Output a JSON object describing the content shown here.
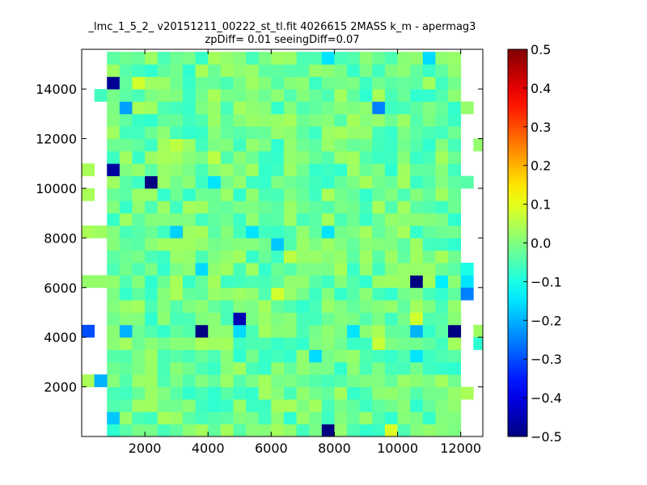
{
  "chart_data": {
    "type": "heatmap",
    "title_line1": "_lmc_1_5_2_ v20151211_00222_st_tl.fit 4026615 2MASS k_m - apermag3",
    "title_line2": "zpDiff= 0.01 seeingDiff=0.07",
    "xlim": [
      0,
      12700
    ],
    "ylim": [
      0,
      15600
    ],
    "x_ticks": [
      2000,
      4000,
      6000,
      8000,
      10000,
      12000
    ],
    "x_tick_labels": [
      "2000",
      "4000",
      "6000",
      "8000",
      "10000",
      "12000"
    ],
    "y_ticks": [
      2000,
      4000,
      6000,
      8000,
      10000,
      12000,
      14000
    ],
    "y_tick_labels": [
      "2000",
      "4000",
      "6000",
      "8000",
      "10000",
      "12000",
      "14000"
    ],
    "colorbar": {
      "colormap": "jet",
      "vmin": -0.5,
      "vmax": 0.5,
      "ticks": [
        -0.5,
        -0.4,
        -0.3,
        -0.2,
        -0.1,
        0.0,
        0.1,
        0.2,
        0.3,
        0.4,
        0.5
      ],
      "tick_labels": [
        "−0.5",
        "−0.4",
        "−0.3",
        "−0.2",
        "−0.1",
        "0.0",
        "0.1",
        "0.2",
        "0.3",
        "0.4",
        "0.5"
      ]
    },
    "grid": {
      "x_start": 0,
      "y_start": 0,
      "cell_width": 400,
      "cell_height": 500,
      "columns": 32,
      "rows": 31,
      "main_columns": [
        2,
        29
      ],
      "background_value": -0.02
    },
    "cells": [
      {
        "col": 2,
        "row": 28,
        "value": -0.48
      },
      {
        "col": 2,
        "row": 21,
        "value": -0.47
      },
      {
        "col": 2,
        "row": 1,
        "value": -0.18
      },
      {
        "col": 3,
        "row": 26,
        "value": -0.22
      },
      {
        "col": 3,
        "row": 8,
        "value": -0.2
      },
      {
        "col": 5,
        "row": 20,
        "value": -0.5
      },
      {
        "col": 7,
        "row": 16,
        "value": -0.17
      },
      {
        "col": 9,
        "row": 13,
        "value": -0.16
      },
      {
        "col": 9,
        "row": 8,
        "value": -0.5
      },
      {
        "col": 10,
        "row": 20,
        "value": -0.15
      },
      {
        "col": 12,
        "row": 9,
        "value": -0.45
      },
      {
        "col": 12,
        "row": 8,
        "value": -0.16
      },
      {
        "col": 13,
        "row": 16,
        "value": -0.15
      },
      {
        "col": 15,
        "row": 15,
        "value": -0.18
      },
      {
        "col": 18,
        "row": 6,
        "value": -0.16
      },
      {
        "col": 19,
        "row": 0,
        "value": -0.5
      },
      {
        "col": 19,
        "row": 16,
        "value": -0.15
      },
      {
        "col": 19,
        "row": 30,
        "value": -0.15
      },
      {
        "col": 21,
        "row": 8,
        "value": -0.15
      },
      {
        "col": 23,
        "row": 26,
        "value": -0.25
      },
      {
        "col": 26,
        "row": 12,
        "value": -0.5
      },
      {
        "col": 26,
        "row": 8,
        "value": -0.2
      },
      {
        "col": 26,
        "row": 6,
        "value": -0.15
      },
      {
        "col": 27,
        "row": 30,
        "value": -0.16
      },
      {
        "col": 28,
        "row": 12,
        "value": -0.14
      },
      {
        "col": 29,
        "row": 8,
        "value": -0.5
      },
      {
        "col": 30,
        "row": 12,
        "value": -0.15
      },
      {
        "col": 30,
        "row": 11,
        "value": -0.25
      },
      {
        "col": 4,
        "row": 28,
        "value": 0.08
      },
      {
        "col": 7,
        "row": 23,
        "value": 0.06
      },
      {
        "col": 15,
        "row": 11,
        "value": 0.08
      },
      {
        "col": 23,
        "row": 7,
        "value": 0.07
      },
      {
        "col": 26,
        "row": 9,
        "value": 0.08
      },
      {
        "col": 24,
        "row": 0,
        "value": 0.09
      },
      {
        "col": 16,
        "row": 14,
        "value": 0.06
      },
      {
        "col": 10,
        "row": 22,
        "value": 0.06
      },
      {
        "col": 0,
        "row": 21,
        "value": 0.04
      },
      {
        "col": 0,
        "row": 19,
        "value": 0.04
      },
      {
        "col": 0,
        "row": 16,
        "value": 0.04
      },
      {
        "col": 0,
        "row": 12,
        "value": 0.02
      },
      {
        "col": 0,
        "row": 8,
        "value": -0.3
      },
      {
        "col": 0,
        "row": 4,
        "value": 0.04
      },
      {
        "col": 1,
        "row": 27,
        "value": -0.06
      },
      {
        "col": 1,
        "row": 16,
        "value": 0.03
      },
      {
        "col": 1,
        "row": 12,
        "value": 0.02
      },
      {
        "col": 1,
        "row": 4,
        "value": -0.2
      },
      {
        "col": 30,
        "row": 26,
        "value": 0.02
      },
      {
        "col": 30,
        "row": 20,
        "value": -0.04
      },
      {
        "col": 30,
        "row": 3,
        "value": 0.04
      },
      {
        "col": 31,
        "row": 23,
        "value": 0.02
      },
      {
        "col": 31,
        "row": 8,
        "value": 0.03
      },
      {
        "col": 31,
        "row": 7,
        "value": -0.08
      },
      {
        "col": 30,
        "row": 13,
        "value": -0.1
      }
    ]
  }
}
